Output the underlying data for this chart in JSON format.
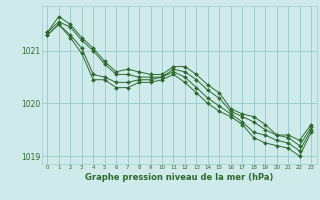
{
  "title": "Graphe pression niveau de la mer (hPa)",
  "bg_color": "#ceeaea",
  "grid_color": "#9ecece",
  "line_color": "#2d6a2d",
  "series": [
    [
      1021.35,
      1021.65,
      1021.5,
      1021.25,
      1021.05,
      1020.8,
      1020.6,
      1020.65,
      1020.6,
      1020.55,
      1020.55,
      1020.7,
      1020.7,
      1020.55,
      1020.35,
      1020.2,
      1019.9,
      1019.8,
      1019.75,
      1019.6,
      1019.4,
      1019.4,
      1019.3,
      1019.6
    ],
    [
      1021.35,
      1021.55,
      1021.45,
      1021.2,
      1021.0,
      1020.75,
      1020.55,
      1020.55,
      1020.5,
      1020.5,
      1020.5,
      1020.65,
      1020.6,
      1020.45,
      1020.25,
      1020.1,
      1019.85,
      1019.75,
      1019.65,
      1019.5,
      1019.4,
      1019.35,
      1019.2,
      1019.55
    ],
    [
      1021.3,
      1021.5,
      1021.3,
      1021.05,
      1020.55,
      1020.5,
      1020.4,
      1020.4,
      1020.45,
      1020.45,
      1020.5,
      1020.6,
      1020.5,
      1020.3,
      1020.1,
      1019.95,
      1019.8,
      1019.65,
      1019.45,
      1019.4,
      1019.3,
      1019.25,
      1019.1,
      1019.5
    ],
    [
      1021.3,
      1021.5,
      1021.25,
      1020.95,
      1020.45,
      1020.45,
      1020.3,
      1020.3,
      1020.4,
      1020.4,
      1020.45,
      1020.55,
      1020.4,
      1020.2,
      1020.0,
      1019.85,
      1019.75,
      1019.6,
      1019.35,
      1019.25,
      1019.2,
      1019.15,
      1019.0,
      1019.45
    ]
  ],
  "xlim_min": -0.5,
  "xlim_max": 23.5,
  "ylim_min": 1018.85,
  "ylim_max": 1021.85,
  "yticks": [
    1019,
    1020,
    1021
  ],
  "ylabel_fontsize": 5.5,
  "xlabel_fontsize": 6,
  "marker": "D",
  "marker_size": 2.0,
  "line_width": 0.7
}
